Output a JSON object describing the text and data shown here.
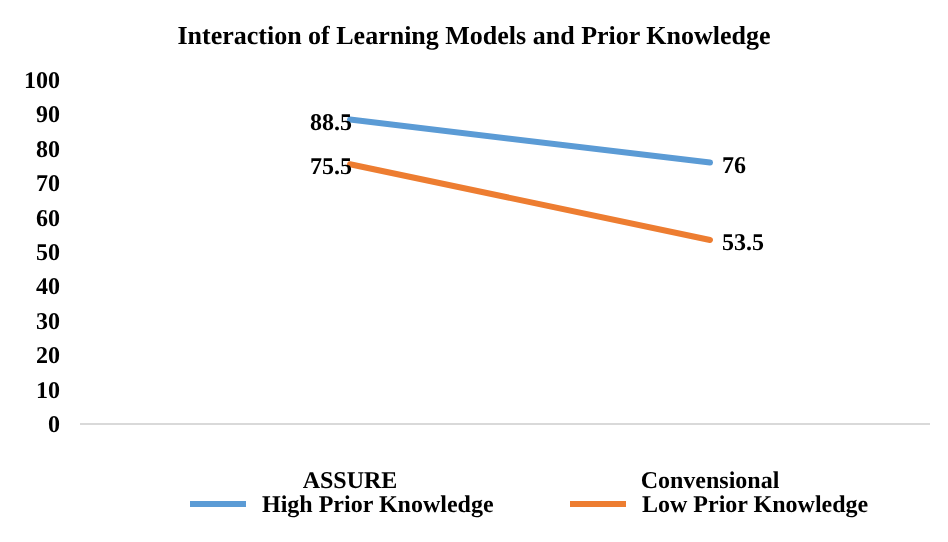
{
  "chart_data": {
    "type": "line",
    "title": "Interaction of Learning Models and Prior Knowledge",
    "categories": [
      "ASSURE",
      "Convensional"
    ],
    "series": [
      {
        "name": "High Prior Knowledge",
        "color": "#5b9bd5",
        "values": [
          88.5,
          76
        ]
      },
      {
        "name": "Low Prior Knowledge",
        "color": "#ed7d31",
        "values": [
          75.5,
          53.5
        ]
      }
    ],
    "ylim": [
      0,
      100
    ],
    "yticks": [
      0,
      10,
      20,
      30,
      40,
      50,
      60,
      70,
      80,
      90,
      100
    ],
    "grid": false,
    "legend": "bottom",
    "data_labels": true,
    "marker": "none",
    "line_style": "solid"
  }
}
